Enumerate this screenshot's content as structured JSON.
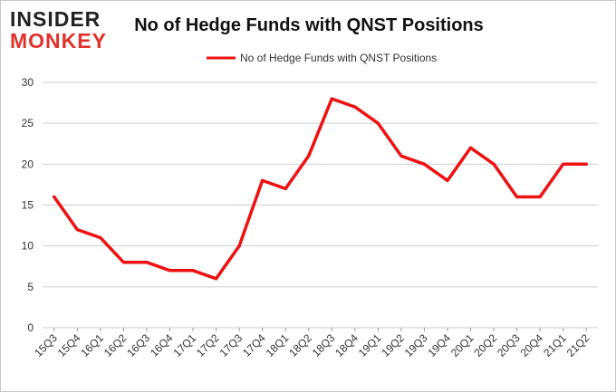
{
  "logo": {
    "line1": "INSIDER",
    "line2": "MONKEY"
  },
  "colors": {
    "series": "#ee1111",
    "grid": "#cfcfcf",
    "logo_dark": "#222222",
    "logo_red": "#e0322b"
  },
  "chart_data": {
    "type": "line",
    "title": "No of Hedge Funds with QNST Positions",
    "xlabel": "",
    "ylabel": "",
    "ylim": [
      0,
      30
    ],
    "yticks": [
      0,
      5,
      10,
      15,
      20,
      25,
      30
    ],
    "grid": true,
    "legend_position": "top-center",
    "x": [
      "15Q3",
      "15Q4",
      "16Q1",
      "16Q2",
      "16Q3",
      "16Q4",
      "17Q1",
      "17Q2",
      "17Q3",
      "17Q4",
      "18Q1",
      "18Q2",
      "18Q3",
      "18Q4",
      "19Q1",
      "19Q2",
      "19Q3",
      "19Q4",
      "20Q1",
      "20Q2",
      "20Q3",
      "20Q4",
      "21Q1",
      "21Q2"
    ],
    "series": [
      {
        "name": "No of Hedge Funds with QNST Positions",
        "values": [
          16,
          12,
          11,
          8,
          8,
          7,
          7,
          6,
          10,
          18,
          17,
          21,
          28,
          27,
          25,
          21,
          20,
          18,
          22,
          20,
          16,
          16,
          20,
          20
        ]
      }
    ]
  }
}
